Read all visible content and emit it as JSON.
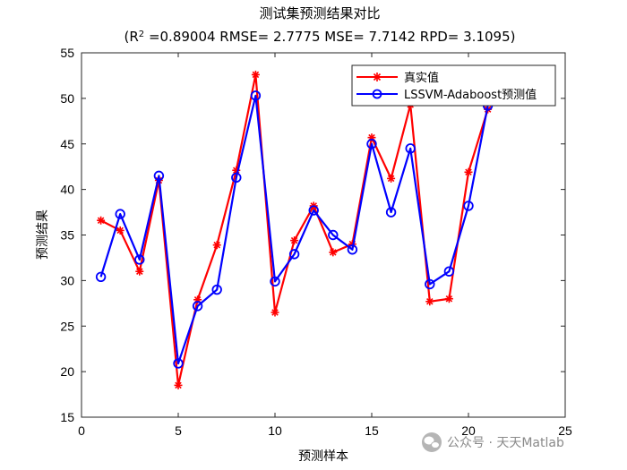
{
  "chart_data": {
    "type": "line",
    "title": "测试集预测结果对比",
    "subtitle": {
      "prefix": "(R",
      "superscript": "2",
      "rest": " =0.89004 RMSE= 2.7775 MSE= 7.7142 RPD= 3.1095)"
    },
    "xlabel": "预测样本",
    "ylabel": "预测结果",
    "xlim": [
      0,
      25
    ],
    "ylim": [
      15,
      55
    ],
    "xticks": [
      0,
      5,
      10,
      15,
      20,
      25
    ],
    "yticks": [
      15,
      20,
      25,
      30,
      35,
      40,
      45,
      50,
      55
    ],
    "x": [
      1,
      2,
      3,
      4,
      5,
      6,
      7,
      8,
      9,
      10,
      11,
      12,
      13,
      14,
      15,
      16,
      17,
      18,
      19,
      20,
      21
    ],
    "legend_position": "top-right",
    "series": [
      {
        "name": "真实值",
        "color": "#ff0000",
        "marker": "asterisk",
        "values": [
          36.6,
          35.5,
          31.0,
          41.0,
          18.5,
          27.9,
          33.9,
          42.1,
          52.6,
          26.5,
          34.4,
          38.2,
          33.1,
          34.0,
          45.7,
          41.2,
          49.3,
          27.7,
          28.0,
          41.9,
          48.8
        ]
      },
      {
        "name": "LSSVM-Adaboost预测值",
        "color": "#0000ff",
        "marker": "circle",
        "values": [
          30.4,
          37.3,
          32.3,
          41.5,
          20.9,
          27.2,
          29.0,
          41.3,
          50.3,
          29.9,
          32.9,
          37.7,
          35.0,
          33.4,
          45.0,
          37.5,
          44.5,
          29.6,
          31.0,
          38.2,
          49.2
        ]
      }
    ]
  },
  "watermark": {
    "icon": "wechat-icon",
    "text": "公众号 · 天天Matlab"
  }
}
